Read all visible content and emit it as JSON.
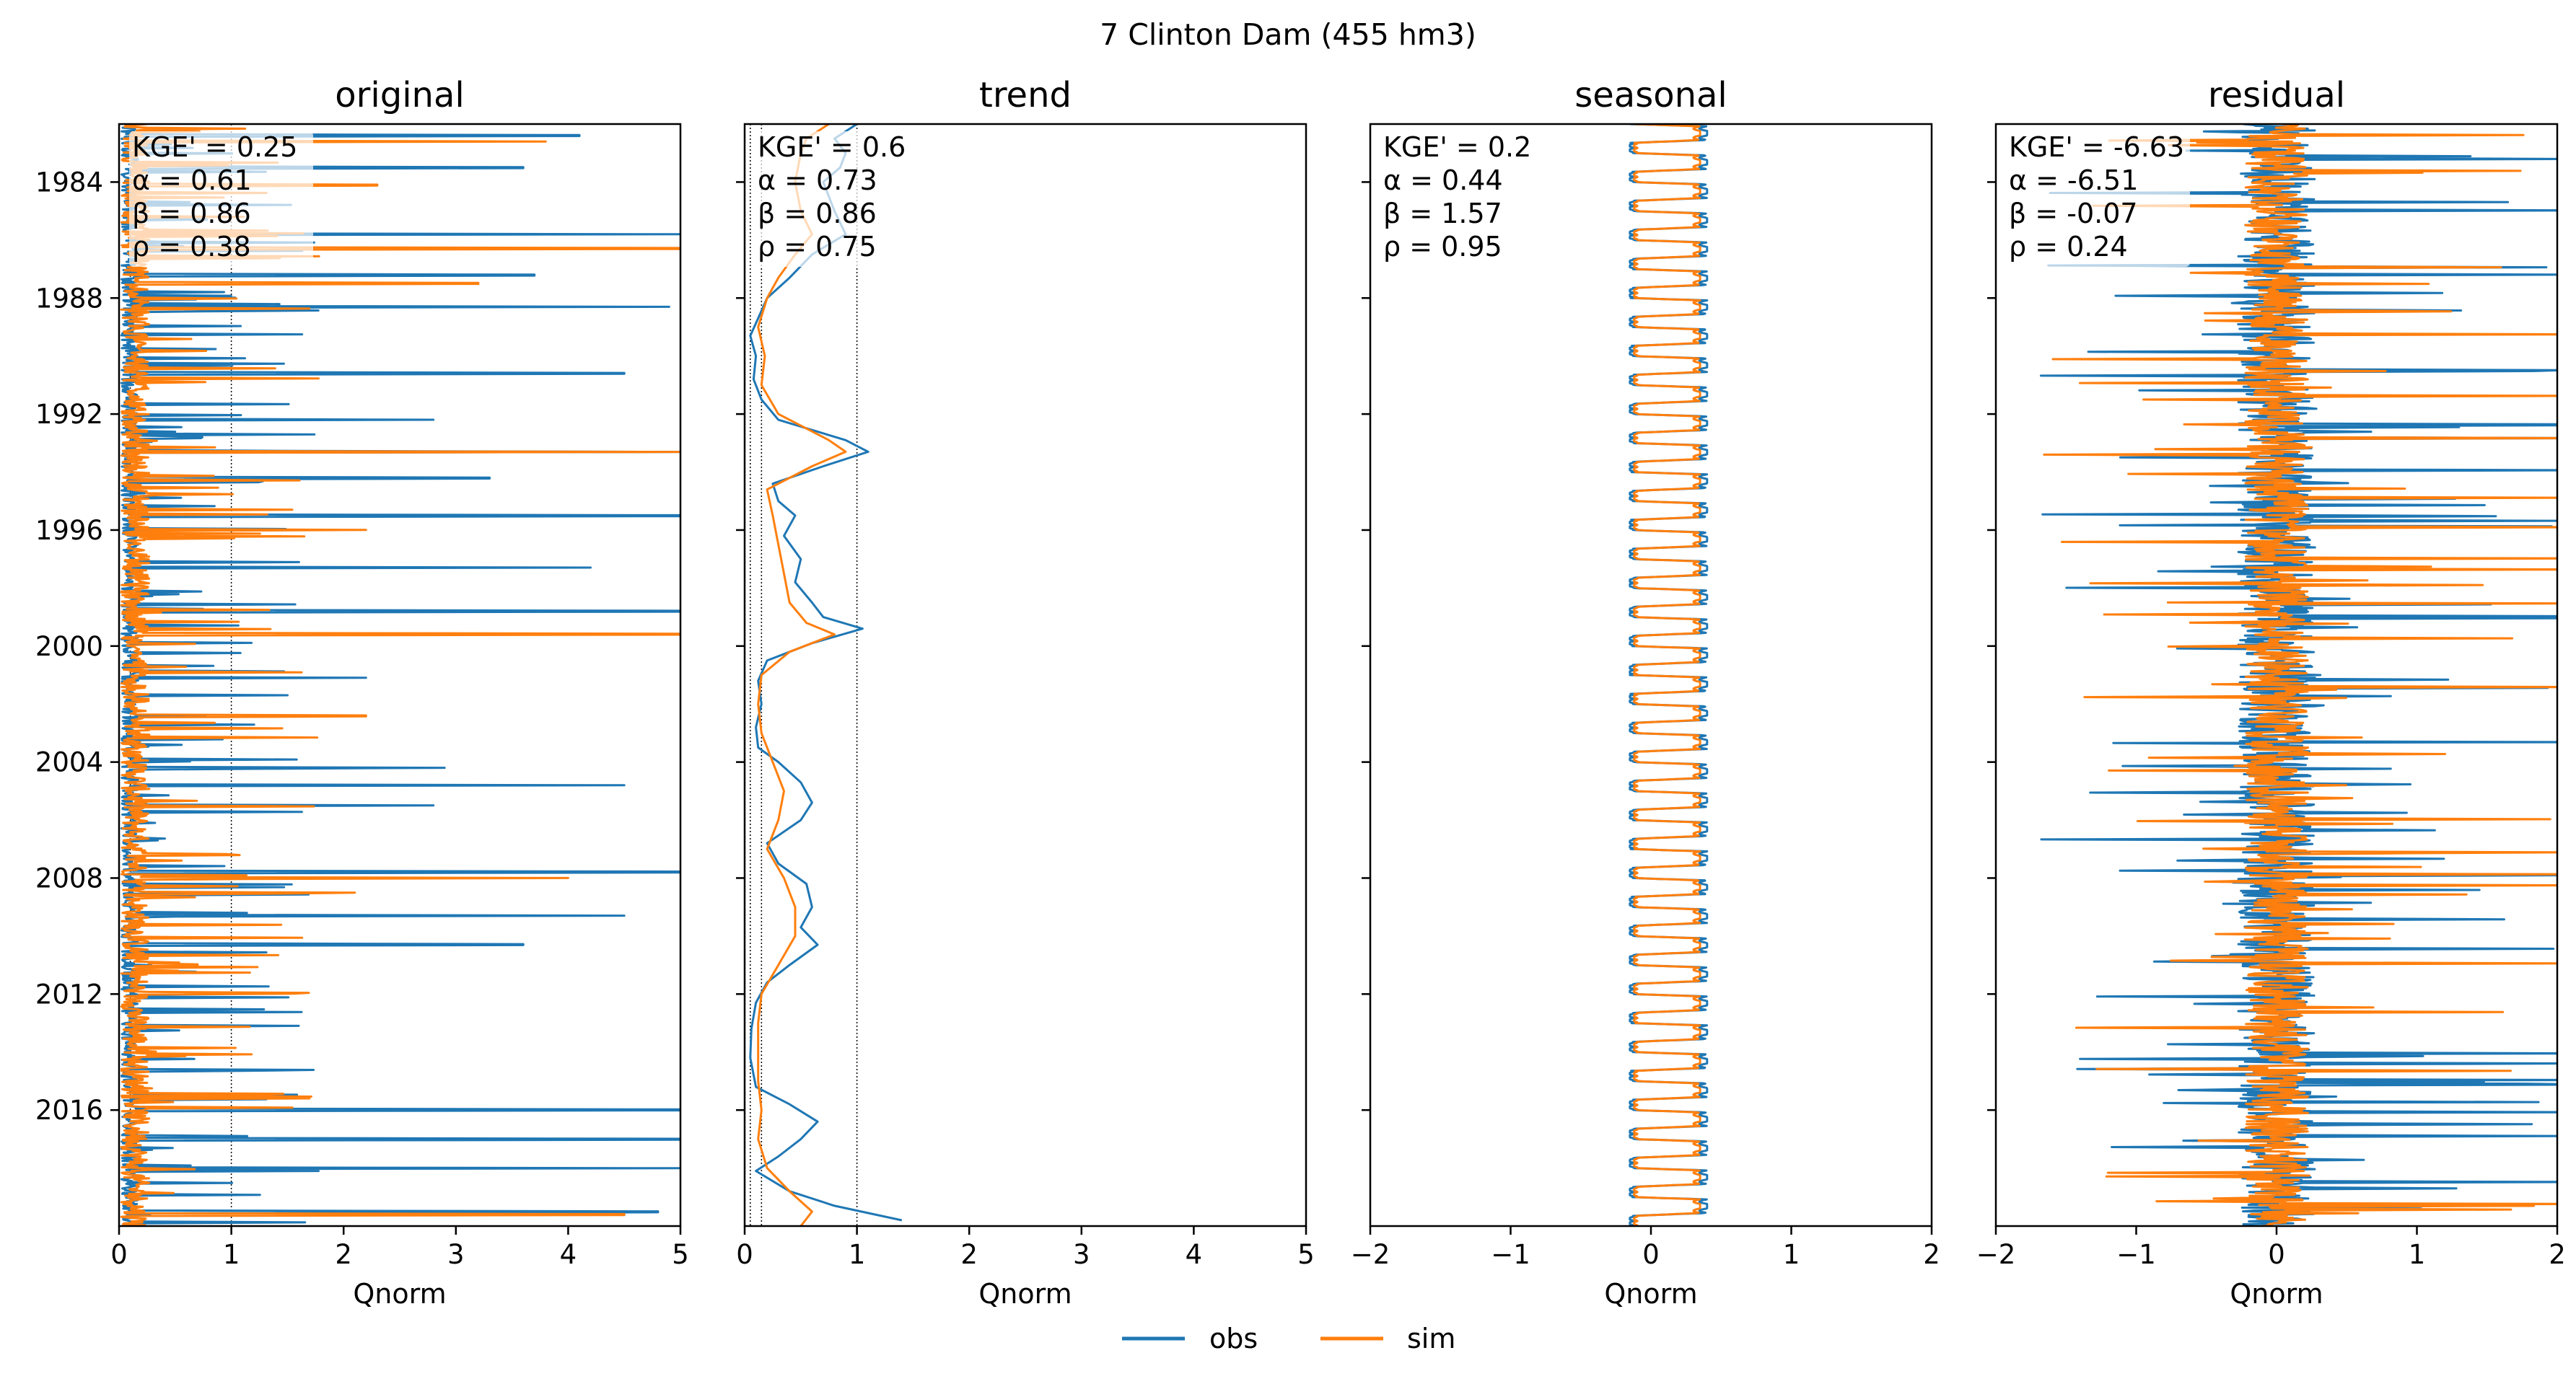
{
  "figure": {
    "suptitle": "7  Clinton Dam (455 hm3)",
    "legend": {
      "obs": "obs",
      "sim": "sim"
    }
  },
  "colors": {
    "obs": "#1f77b4",
    "sim": "#ff7f0e",
    "text_box": "#ffffff"
  },
  "chart_data": [
    {
      "type": "line",
      "title": "original",
      "xlabel": "Qnorm",
      "xlim": [
        0,
        5
      ],
      "xticks": [
        "0",
        "1",
        "2",
        "3",
        "4",
        "5"
      ],
      "ylim_years": [
        1982,
        2020
      ],
      "yticks": [
        "1984",
        "1988",
        "1992",
        "1996",
        "2000",
        "2004",
        "2008",
        "2012",
        "2016"
      ],
      "ref_lines_x": [
        0.1,
        1
      ],
      "stats": [
        "KGE' = 0.25",
        "α = 0.61",
        "β = 0.86",
        "ρ = 0.38"
      ],
      "series": [
        {
          "name": "obs",
          "description_values_note": "flashy daily series, baseline ~0.1, spikes up to ~4.8",
          "peaks": [
            [
              1982.4,
              4.1
            ],
            [
              1983.5,
              3.6
            ],
            [
              1985.8,
              5.0
            ],
            [
              1987.2,
              3.7
            ],
            [
              1988.3,
              4.9
            ],
            [
              1990.6,
              4.5
            ],
            [
              1992.2,
              2.8
            ],
            [
              1993.3,
              5.0
            ],
            [
              1994.2,
              3.3
            ],
            [
              1995.5,
              5.0
            ],
            [
              1997.3,
              4.2
            ],
            [
              1998.8,
              5.0
            ],
            [
              2001.1,
              2.2
            ],
            [
              2004.2,
              2.9
            ],
            [
              2004.8,
              4.5
            ],
            [
              2005.5,
              2.8
            ],
            [
              2007.8,
              5.0
            ],
            [
              2009.3,
              4.5
            ],
            [
              2010.3,
              3.6
            ],
            [
              2013.1,
              1.6
            ],
            [
              2016.0,
              5.0
            ],
            [
              2017.0,
              5.0
            ],
            [
              2018.0,
              5.0
            ],
            [
              2019.5,
              4.8
            ]
          ]
        },
        {
          "name": "sim",
          "description_values_note": "baseline ~0.1, spikes up to ~5",
          "peaks": [
            [
              1982.6,
              3.8
            ],
            [
              1984.1,
              2.3
            ],
            [
              1986.3,
              5.0
            ],
            [
              1987.5,
              3.2
            ],
            [
              1993.3,
              5.0
            ],
            [
              1996.0,
              2.2
            ],
            [
              1999.6,
              5.0
            ],
            [
              2002.4,
              2.2
            ],
            [
              2008.0,
              4.0
            ],
            [
              2008.5,
              2.1
            ],
            [
              2011.0,
              0.7
            ],
            [
              2019.6,
              4.5
            ]
          ]
        }
      ]
    },
    {
      "type": "line",
      "title": "trend",
      "xlabel": "Qnorm",
      "xlim": [
        0,
        5
      ],
      "xticks": [
        "0",
        "1",
        "2",
        "3",
        "4",
        "5"
      ],
      "ylim_years": [
        1982,
        2020
      ],
      "ref_lines_x": [
        0.05,
        0.15,
        1
      ],
      "stats": [
        "KGE' = 0.6",
        "α = 0.73",
        "β = 0.86",
        "ρ = 0.75"
      ],
      "series": [
        {
          "name": "obs",
          "points": [
            [
              1982.0,
              1.0
            ],
            [
              1982.5,
              0.8
            ],
            [
              1983.0,
              0.9
            ],
            [
              1983.5,
              0.85
            ],
            [
              1984.0,
              0.7
            ],
            [
              1985.0,
              0.8
            ],
            [
              1985.8,
              0.9
            ],
            [
              1986.5,
              0.6
            ],
            [
              1987.3,
              0.4
            ],
            [
              1988.0,
              0.2
            ],
            [
              1988.7,
              0.12
            ],
            [
              1989.3,
              0.05
            ],
            [
              1990.0,
              0.1
            ],
            [
              1990.8,
              0.08
            ],
            [
              1991.5,
              0.15
            ],
            [
              1992.2,
              0.3
            ],
            [
              1992.9,
              0.9
            ],
            [
              1993.3,
              1.1
            ],
            [
              1993.8,
              0.7
            ],
            [
              1994.4,
              0.25
            ],
            [
              1995.0,
              0.3
            ],
            [
              1995.5,
              0.45
            ],
            [
              1996.2,
              0.35
            ],
            [
              1997.0,
              0.5
            ],
            [
              1997.8,
              0.45
            ],
            [
              1998.5,
              0.6
            ],
            [
              1999.0,
              0.7
            ],
            [
              1999.4,
              1.05
            ],
            [
              1999.9,
              0.6
            ],
            [
              2000.5,
              0.2
            ],
            [
              2001.2,
              0.12
            ],
            [
              2002.0,
              0.15
            ],
            [
              2002.8,
              0.1
            ],
            [
              2003.5,
              0.12
            ],
            [
              2004.0,
              0.3
            ],
            [
              2004.7,
              0.5
            ],
            [
              2005.4,
              0.6
            ],
            [
              2006.0,
              0.5
            ],
            [
              2006.8,
              0.2
            ],
            [
              2007.5,
              0.3
            ],
            [
              2008.2,
              0.55
            ],
            [
              2009.0,
              0.6
            ],
            [
              2009.7,
              0.5
            ],
            [
              2010.3,
              0.65
            ],
            [
              2011.0,
              0.4
            ],
            [
              2011.6,
              0.2
            ],
            [
              2012.3,
              0.1
            ],
            [
              2013.2,
              0.06
            ],
            [
              2014.2,
              0.05
            ],
            [
              2015.2,
              0.1
            ],
            [
              2015.8,
              0.4
            ],
            [
              2016.4,
              0.65
            ],
            [
              2017.0,
              0.5
            ],
            [
              2017.6,
              0.3
            ],
            [
              2018.1,
              0.1
            ],
            [
              2018.8,
              0.4
            ],
            [
              2019.3,
              0.8
            ],
            [
              2019.8,
              1.4
            ]
          ]
        },
        {
          "name": "sim",
          "points": [
            [
              1982.0,
              0.75
            ],
            [
              1982.5,
              0.55
            ],
            [
              1983.0,
              0.5
            ],
            [
              1984.0,
              0.45
            ],
            [
              1985.0,
              0.5
            ],
            [
              1985.8,
              0.6
            ],
            [
              1986.5,
              0.45
            ],
            [
              1987.3,
              0.3
            ],
            [
              1988.0,
              0.2
            ],
            [
              1989.0,
              0.12
            ],
            [
              1990.0,
              0.18
            ],
            [
              1991.0,
              0.15
            ],
            [
              1992.0,
              0.3
            ],
            [
              1992.9,
              0.75
            ],
            [
              1993.3,
              0.9
            ],
            [
              1993.8,
              0.6
            ],
            [
              1994.6,
              0.2
            ],
            [
              1995.5,
              0.25
            ],
            [
              1996.5,
              0.3
            ],
            [
              1997.5,
              0.35
            ],
            [
              1998.5,
              0.4
            ],
            [
              1999.2,
              0.55
            ],
            [
              1999.6,
              0.8
            ],
            [
              2000.2,
              0.4
            ],
            [
              2001.0,
              0.15
            ],
            [
              2002.0,
              0.12
            ],
            [
              2003.0,
              0.15
            ],
            [
              2004.0,
              0.25
            ],
            [
              2005.0,
              0.35
            ],
            [
              2006.0,
              0.3
            ],
            [
              2007.0,
              0.2
            ],
            [
              2008.0,
              0.35
            ],
            [
              2009.0,
              0.45
            ],
            [
              2010.0,
              0.45
            ],
            [
              2011.0,
              0.3
            ],
            [
              2012.0,
              0.15
            ],
            [
              2013.0,
              0.12
            ],
            [
              2014.0,
              0.12
            ],
            [
              2015.0,
              0.12
            ],
            [
              2016.0,
              0.15
            ],
            [
              2017.0,
              0.12
            ],
            [
              2018.0,
              0.2
            ],
            [
              2018.8,
              0.4
            ],
            [
              2019.5,
              0.6
            ],
            [
              2020.0,
              0.5
            ]
          ]
        }
      ]
    },
    {
      "type": "line",
      "title": "seasonal",
      "xlabel": "Qnorm",
      "xlim": [
        -2,
        2
      ],
      "xticks": [
        "−2",
        "−1",
        "0",
        "1",
        "2"
      ],
      "ylim_years": [
        1982,
        2020
      ],
      "stats": [
        "KGE' = 0.2",
        "α = 0.44",
        "β = 1.57",
        "ρ = 0.95"
      ],
      "series": [
        {
          "name": "obs",
          "periodic": {
            "period_years": 1,
            "min": -0.15,
            "max": 0.4
          }
        },
        {
          "name": "sim",
          "periodic": {
            "period_years": 1,
            "min": -0.12,
            "max": 0.35
          }
        }
      ]
    },
    {
      "type": "line",
      "title": "residual",
      "xlabel": "Qnorm",
      "xlim": [
        -2,
        2
      ],
      "xticks": [
        "−2",
        "−1",
        "0",
        "1",
        "2"
      ],
      "ylim_years": [
        1982,
        2020
      ],
      "stats": [
        "KGE' = -6.63",
        "α = -6.51",
        "β = -0.07",
        "ρ = 0.24"
      ],
      "series": [
        {
          "name": "obs",
          "description_values_note": "noisy residual centered at 0, spikes to ±2"
        },
        {
          "name": "sim",
          "description_values_note": "noisy residual centered at 0, spikes to ±2"
        }
      ]
    }
  ]
}
